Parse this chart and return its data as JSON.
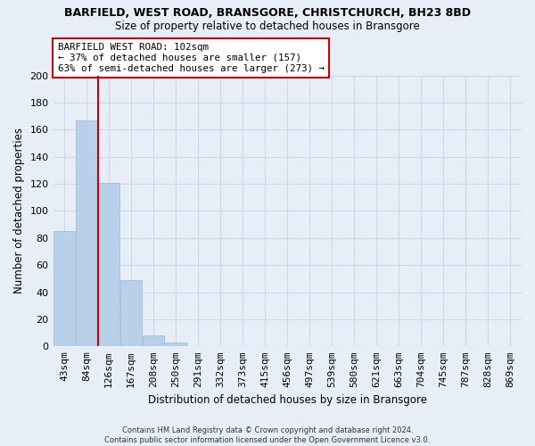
{
  "title": "BARFIELD, WEST ROAD, BRANSGORE, CHRISTCHURCH, BH23 8BD",
  "subtitle": "Size of property relative to detached houses in Bransgore",
  "xlabel": "Distribution of detached houses by size in Bransgore",
  "ylabel": "Number of detached properties",
  "footnote1": "Contains HM Land Registry data © Crown copyright and database right 2024.",
  "footnote2": "Contains public sector information licensed under the Open Government Licence v3.0.",
  "bar_labels": [
    "43sqm",
    "84sqm",
    "126sqm",
    "167sqm",
    "208sqm",
    "250sqm",
    "291sqm",
    "332sqm",
    "373sqm",
    "415sqm",
    "456sqm",
    "497sqm",
    "539sqm",
    "580sqm",
    "621sqm",
    "663sqm",
    "704sqm",
    "745sqm",
    "787sqm",
    "828sqm",
    "869sqm"
  ],
  "bar_values": [
    85,
    167,
    121,
    49,
    8,
    3,
    0,
    0,
    0,
    0,
    0,
    0,
    0,
    0,
    0,
    0,
    0,
    0,
    0,
    0,
    0
  ],
  "bar_color": "#b8d0ea",
  "bar_edge_color": "#9ab8d8",
  "ylim": [
    0,
    200
  ],
  "yticks": [
    0,
    20,
    40,
    60,
    80,
    100,
    120,
    140,
    160,
    180,
    200
  ],
  "vline_x": 1.5,
  "vline_color": "#cc0000",
  "property_label": "BARFIELD WEST ROAD: 102sqm",
  "ann_line1": "← 37% of detached houses are smaller (157)",
  "ann_line2": "63% of semi-detached houses are larger (273) →",
  "ann_box_facecolor": "#ffffff",
  "ann_box_edgecolor": "#cc0000",
  "background_color": "#e8eef8",
  "grid_color": "#d0d8e8",
  "title_fontsize": 9,
  "subtitle_fontsize": 8.5
}
